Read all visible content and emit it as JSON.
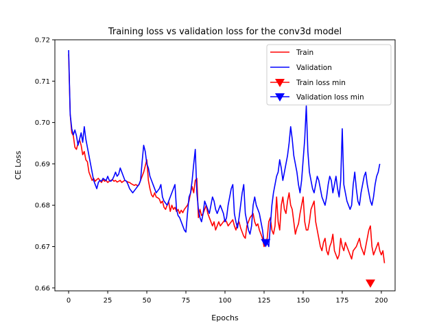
{
  "chart_data": {
    "type": "line",
    "title": "Training loss vs validation loss for the conv3d model",
    "xlabel": "Epochs",
    "ylabel": "CE Loss",
    "xlim": [
      -8.8,
      208.8
    ],
    "ylim": [
      0.6593,
      0.72
    ],
    "xticks": [
      0,
      25,
      50,
      75,
      100,
      125,
      150,
      175,
      200
    ],
    "yticks": [
      0.66,
      0.67,
      0.68,
      0.69,
      0.7,
      0.71,
      0.72
    ],
    "ytick_labels": [
      "0.66",
      "0.67",
      "0.68",
      "0.69",
      "0.70",
      "0.71",
      "0.72"
    ],
    "grid": false,
    "legend_position": "top-right",
    "colors": {
      "train": "#ff0000",
      "validation": "#0000ff"
    },
    "series": [
      {
        "name": "Train",
        "color": "#ff0000",
        "x_start": 0,
        "values": [
          0.7165,
          0.702,
          0.6975,
          0.6968,
          0.694,
          0.6935,
          0.695,
          0.6958,
          0.6945,
          0.6922,
          0.693,
          0.691,
          0.6905,
          0.688,
          0.687,
          0.686,
          0.6865,
          0.6858,
          0.6862,
          0.6865,
          0.686,
          0.6855,
          0.6862,
          0.6858,
          0.686,
          0.6855,
          0.6858,
          0.686,
          0.6862,
          0.6858,
          0.686,
          0.6856,
          0.6858,
          0.686,
          0.6855,
          0.6858,
          0.686,
          0.6858,
          0.6856,
          0.6855,
          0.6852,
          0.685,
          0.6848,
          0.685,
          0.6847,
          0.685,
          0.686,
          0.687,
          0.688,
          0.6895,
          0.691,
          0.686,
          0.684,
          0.6825,
          0.682,
          0.683,
          0.682,
          0.6818,
          0.6815,
          0.6805,
          0.681,
          0.6795,
          0.679,
          0.68,
          0.6808,
          0.6785,
          0.68,
          0.679,
          0.6795,
          0.6785,
          0.679,
          0.678,
          0.6788,
          0.6782,
          0.679,
          0.6795,
          0.68,
          0.681,
          0.683,
          0.6845,
          0.683,
          0.686,
          0.6865,
          0.677,
          0.679,
          0.6775,
          0.678,
          0.679,
          0.68,
          0.678,
          0.677,
          0.676,
          0.675,
          0.676,
          0.674,
          0.675,
          0.676,
          0.675,
          0.6755,
          0.676,
          0.6765,
          0.676,
          0.675,
          0.6755,
          0.676,
          0.6765,
          0.675,
          0.674,
          0.6755,
          0.676,
          0.6745,
          0.6735,
          0.6725,
          0.672,
          0.675,
          0.676,
          0.677,
          0.6775,
          0.678,
          0.676,
          0.675,
          0.6755,
          0.674,
          0.673,
          0.672,
          0.67,
          0.671,
          0.672,
          0.676,
          0.677,
          0.674,
          0.673,
          0.675,
          0.682,
          0.676,
          0.674,
          0.68,
          0.682,
          0.679,
          0.678,
          0.681,
          0.683,
          0.68,
          0.679,
          0.676,
          0.673,
          0.6745,
          0.6755,
          0.678,
          0.68,
          0.682,
          0.676,
          0.674,
          0.674,
          0.676,
          0.679,
          0.68,
          0.681,
          0.676,
          0.674,
          0.672,
          0.67,
          0.669,
          0.671,
          0.672,
          0.669,
          0.668,
          0.67,
          0.671,
          0.673,
          0.669,
          0.668,
          0.667,
          0.668,
          0.672,
          0.67,
          0.669,
          0.671,
          0.67,
          0.669,
          0.668,
          0.667,
          0.669,
          0.6695,
          0.67,
          0.671,
          0.672,
          0.67,
          0.669,
          0.668,
          0.67,
          0.672,
          0.674,
          0.675,
          0.67,
          0.668,
          0.669,
          0.67,
          0.671,
          0.669,
          0.668,
          0.669,
          0.666
        ]
      },
      {
        "name": "Validation",
        "color": "#0000ff",
        "x_start": 0,
        "values": [
          0.7175,
          0.702,
          0.6985,
          0.697,
          0.6982,
          0.6968,
          0.6945,
          0.696,
          0.6975,
          0.6952,
          0.699,
          0.696,
          0.694,
          0.692,
          0.69,
          0.688,
          0.686,
          0.685,
          0.684,
          0.6855,
          0.686,
          0.6858,
          0.6865,
          0.6862,
          0.686,
          0.687,
          0.686,
          0.6858,
          0.6862,
          0.687,
          0.688,
          0.687,
          0.6875,
          0.689,
          0.688,
          0.687,
          0.686,
          0.6858,
          0.685,
          0.684,
          0.6835,
          0.683,
          0.6835,
          0.684,
          0.6845,
          0.685,
          0.686,
          0.6905,
          0.6945,
          0.693,
          0.69,
          0.689,
          0.687,
          0.686,
          0.685,
          0.684,
          0.683,
          0.6835,
          0.684,
          0.685,
          0.682,
          0.681,
          0.6805,
          0.68,
          0.681,
          0.682,
          0.683,
          0.684,
          0.685,
          0.679,
          0.6775,
          0.677,
          0.676,
          0.675,
          0.674,
          0.6735,
          0.678,
          0.682,
          0.683,
          0.686,
          0.69,
          0.6935,
          0.683,
          0.679,
          0.677,
          0.676,
          0.678,
          0.681,
          0.68,
          0.679,
          0.678,
          0.68,
          0.682,
          0.681,
          0.679,
          0.678,
          0.679,
          0.68,
          0.679,
          0.678,
          0.676,
          0.677,
          0.68,
          0.682,
          0.684,
          0.685,
          0.678,
          0.676,
          0.6745,
          0.677,
          0.68,
          0.683,
          0.685,
          0.678,
          0.676,
          0.674,
          0.673,
          0.675,
          0.68,
          0.682,
          0.68,
          0.679,
          0.678,
          0.676,
          0.674,
          0.671,
          0.6705,
          0.671,
          0.67,
          0.675,
          0.68,
          0.683,
          0.685,
          0.687,
          0.688,
          0.691,
          0.689,
          0.686,
          0.688,
          0.69,
          0.692,
          0.695,
          0.699,
          0.696,
          0.692,
          0.69,
          0.688,
          0.685,
          0.683,
          0.686,
          0.691,
          0.696,
          0.704,
          0.693,
          0.688,
          0.686,
          0.684,
          0.683,
          0.685,
          0.687,
          0.686,
          0.684,
          0.682,
          0.681,
          0.68,
          0.682,
          0.685,
          0.687,
          0.686,
          0.683,
          0.685,
          0.687,
          0.684,
          0.682,
          0.686,
          0.6985,
          0.685,
          0.683,
          0.681,
          0.68,
          0.679,
          0.68,
          0.685,
          0.688,
          0.684,
          0.681,
          0.68,
          0.683,
          0.685,
          0.687,
          0.688,
          0.685,
          0.683,
          0.681,
          0.68,
          0.682,
          0.685,
          0.687,
          0.688,
          0.69
        ]
      }
    ],
    "markers": [
      {
        "name": "Train loss min",
        "color": "#ff0000",
        "x": 193,
        "y": 0.6612,
        "shape": "triangle-down"
      },
      {
        "name": "Validation loss min",
        "color": "#0000ff",
        "x": 126,
        "y": 0.671,
        "shape": "triangle-down"
      }
    ]
  }
}
